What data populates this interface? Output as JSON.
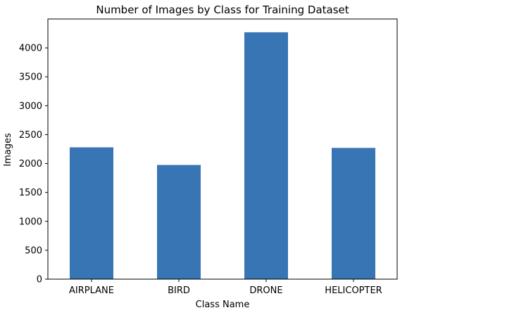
{
  "chart_data": {
    "type": "bar",
    "title": "Number of Images by Class for Training Dataset",
    "xlabel": "Class Name",
    "ylabel": "Images",
    "categories": [
      "AIRPLANE",
      "BIRD",
      "DRONE",
      "HELICOPTER"
    ],
    "values": [
      2280,
      1975,
      4270,
      2270
    ],
    "ylim": [
      0,
      4500
    ],
    "yticks": [
      0,
      500,
      1000,
      1500,
      2000,
      2500,
      3000,
      3500,
      4000
    ],
    "bar_color": "#3775b4",
    "grid": false,
    "legend": "none"
  }
}
